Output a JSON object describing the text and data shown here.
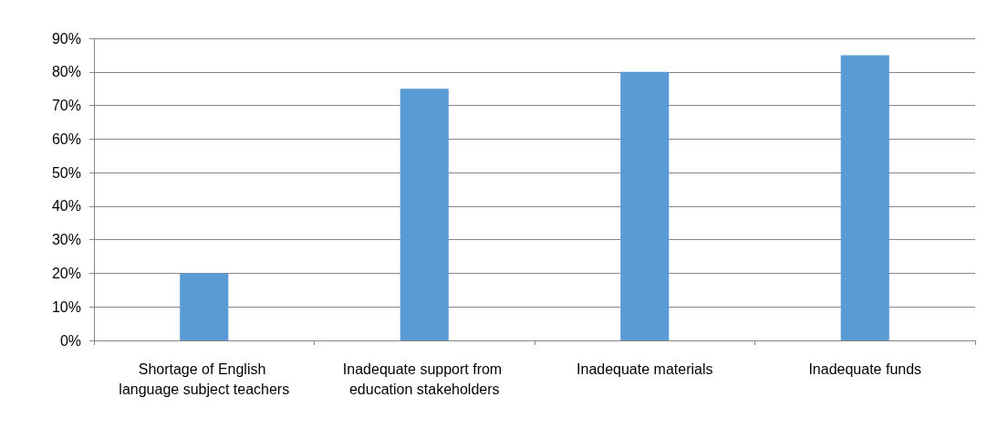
{
  "chart_data": {
    "type": "bar",
    "categories": [
      "Shortage of English language subject teachers",
      "Inadequate support from education stakeholders",
      "Inadequate materials",
      "Inadequate funds"
    ],
    "values": [
      20,
      75,
      80,
      85
    ],
    "color": "#5b9bd5",
    "ylim": [
      0,
      90
    ],
    "yticks": [
      {
        "value": 0,
        "label": "0%"
      },
      {
        "value": 10,
        "label": "10%"
      },
      {
        "value": 20,
        "label": "20%"
      },
      {
        "value": 30,
        "label": "30%"
      },
      {
        "value": 40,
        "label": "40%"
      },
      {
        "value": 50,
        "label": "50%"
      },
      {
        "value": 60,
        "label": "60%"
      },
      {
        "value": 70,
        "label": "70%"
      },
      {
        "value": 80,
        "label": "80%"
      },
      {
        "value": 90,
        "label": "90%"
      }
    ],
    "grid": "y"
  }
}
